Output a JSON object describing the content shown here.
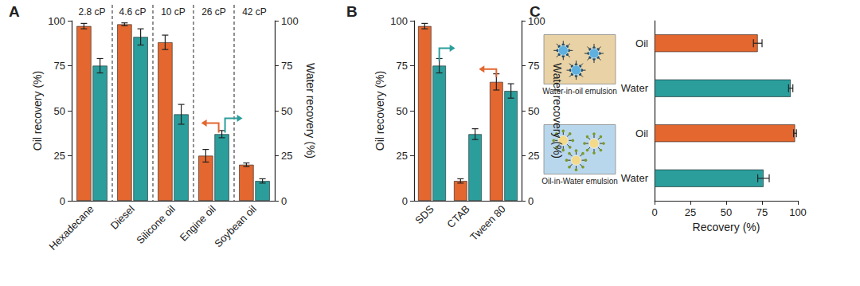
{
  "chart_data": [
    {
      "type": "bar",
      "title": "A",
      "categories": [
        "Hexadecane",
        "Diesel",
        "Silicone oil",
        "Engine oil",
        "Soybean oil"
      ],
      "annotations": [
        "2.8 cP",
        "4.6 cP",
        "10 cP",
        "26 cP",
        "42 cP"
      ],
      "y_label": "Oil recovery (%)",
      "y2_label": "Water recovery (%)",
      "ylim": [
        0,
        100
      ],
      "yticks": [
        0,
        25,
        50,
        75,
        100
      ],
      "y2lim": [
        0,
        100
      ],
      "y2ticks": [
        0,
        25,
        50,
        75,
        100
      ],
      "grid": false,
      "series": [
        {
          "color": "#e3672f",
          "values": [
            97,
            98,
            88,
            25,
            20
          ],
          "errors": [
            1.5,
            0.8,
            4,
            3.5,
            1
          ]
        },
        {
          "color": "#2b9e9c",
          "axis": "y2",
          "values": [
            75,
            91,
            48,
            37,
            11
          ],
          "errors": [
            4,
            4.5,
            5.5,
            2,
            1.2
          ]
        }
      ]
    },
    {
      "type": "bar",
      "title": "B",
      "categories": [
        "SDS",
        "CTAB",
        "Tween 80"
      ],
      "y_label": "Oil recovery (%)",
      "y2_label": "Water recovery (%)",
      "ylim": [
        0,
        100
      ],
      "yticks": [
        0,
        25,
        50,
        75,
        100
      ],
      "y2lim": [
        0,
        100
      ],
      "y2ticks": [
        0,
        25,
        50,
        75,
        100
      ],
      "grid": false,
      "series": [
        {
          "color": "#e3672f",
          "values": [
            97,
            11,
            66
          ],
          "errors": [
            1.5,
            1.2,
            4.5
          ]
        },
        {
          "color": "#2b9e9c",
          "axis": "y2",
          "values": [
            75,
            37,
            61
          ],
          "errors": [
            4,
            3,
            4
          ]
        }
      ]
    },
    {
      "type": "bar",
      "title": "C",
      "orientation": "horizontal",
      "categories": [
        "Oil",
        "Water",
        "Oil",
        "Water"
      ],
      "groups": [
        "Water-in-oil emulsion",
        "Oil-in-Water emulsion"
      ],
      "values": [
        72,
        95,
        98,
        76
      ],
      "errors": [
        3,
        1.5,
        1,
        4
      ],
      "colors": [
        "#e3672f",
        "#2b9e9c",
        "#e3672f",
        "#2b9e9c"
      ],
      "x_label": "Recovery (%)",
      "xlim": [
        0,
        100
      ],
      "xticks": [
        0,
        25,
        50,
        75,
        100
      ],
      "grid": false
    }
  ]
}
